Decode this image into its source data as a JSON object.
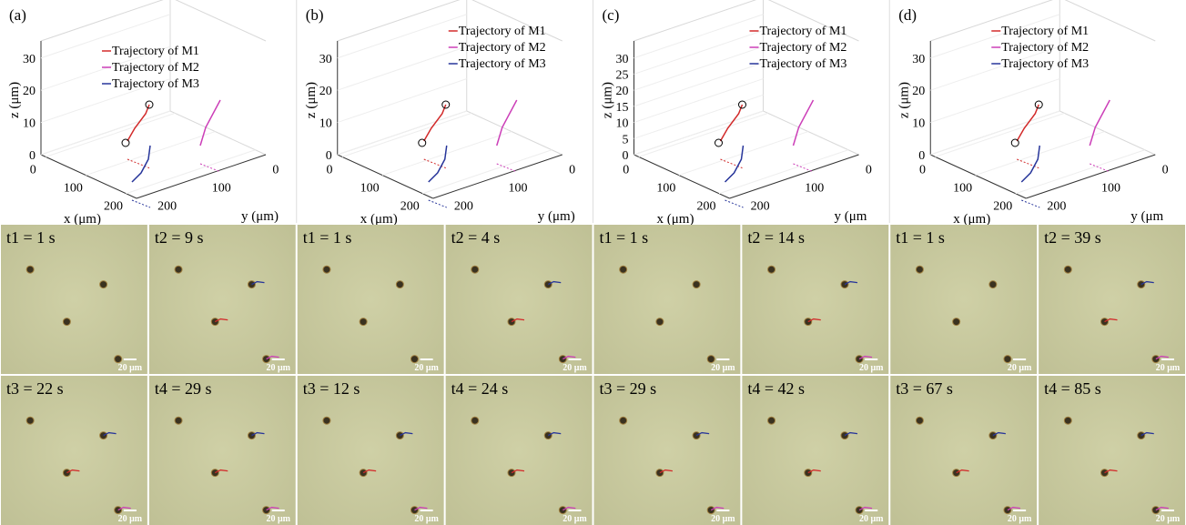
{
  "panels": [
    {
      "label": "(a)",
      "legend": [
        "Trajectory of M1",
        "Trajectory of M2",
        "Trajectory of M3"
      ],
      "z_label": "z (μm)",
      "x_label": "x (μm)",
      "y_label": "y (μm)",
      "z_ticks": [
        "0",
        "10",
        "20",
        "30"
      ],
      "x_ticks": [
        "0",
        "100",
        "200"
      ],
      "y_ticks": [
        "0",
        "100",
        "200"
      ],
      "frames": [
        {
          "time": "t1 = 1 s",
          "scale": "20 μm"
        },
        {
          "time": "t2 = 9 s",
          "scale": "20 μm"
        },
        {
          "time": "t3 = 22 s",
          "scale": "20 μm"
        },
        {
          "time": "t4 = 29 s",
          "scale": "20 μm"
        }
      ]
    },
    {
      "label": "(b)",
      "legend": [
        "Trajectory of M1",
        "Trajectory of M2",
        "Trajectory of M3"
      ],
      "z_label": "z (μm)",
      "x_label": "x (μm)",
      "y_label": "y (μm)",
      "z_ticks": [
        "0",
        "10",
        "20",
        "30"
      ],
      "x_ticks": [
        "0",
        "100",
        "200"
      ],
      "y_ticks": [
        "0",
        "100",
        "200"
      ],
      "frames": [
        {
          "time": "t1 = 1 s",
          "scale": "20 μm"
        },
        {
          "time": "t2 = 4 s",
          "scale": "20 μm"
        },
        {
          "time": "t3 = 12 s",
          "scale": "20 μm"
        },
        {
          "time": "t4 = 24 s",
          "scale": "20 μm"
        }
      ]
    },
    {
      "label": "(c)",
      "legend": [
        "Trajectory of M1",
        "Trajectory of M2",
        "Trajectory of M3"
      ],
      "z_label": "z (μm)",
      "x_label": "x (μm)",
      "y_label": "y (μm",
      "z_ticks": [
        "0",
        "5",
        "10",
        "15",
        "20",
        "25",
        "30"
      ],
      "x_ticks": [
        "0",
        "100",
        "200"
      ],
      "y_ticks": [
        "0",
        "100",
        "200"
      ],
      "frames": [
        {
          "time": "t1 = 1 s",
          "scale": "20 μm"
        },
        {
          "time": "t2 = 14 s",
          "scale": "20 μm"
        },
        {
          "time": "t3 = 29 s",
          "scale": "20 μm"
        },
        {
          "time": "t4 = 42 s",
          "scale": "20 μm"
        }
      ]
    },
    {
      "label": "(d)",
      "legend": [
        "Trajectory of M1",
        "Trajectory of M2",
        "Trajectory of M3"
      ],
      "z_label": "z (μm)",
      "x_label": "x (μm)",
      "y_label": "y (μm",
      "z_ticks": [
        "0",
        "10",
        "20",
        "30"
      ],
      "x_ticks": [
        "0",
        "100",
        "200"
      ],
      "y_ticks": [
        "0",
        "100",
        "200"
      ],
      "frames": [
        {
          "time": "t1 = 1 s",
          "scale": "20 μm"
        },
        {
          "time": "t2 = 39 s",
          "scale": "20 μm"
        },
        {
          "time": "t3 = 67 s",
          "scale": "20 μm"
        },
        {
          "time": "t4 = 85 s",
          "scale": "20 μm"
        }
      ]
    }
  ]
}
